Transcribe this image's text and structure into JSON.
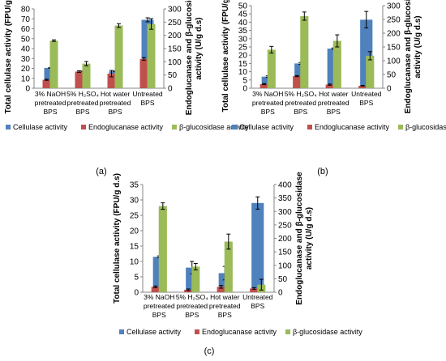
{
  "figure": {
    "panel_labels": [
      "(a)",
      "(b)",
      "(c)"
    ]
  },
  "chart_data": [
    {
      "type": "bar",
      "panel": "(a)",
      "categories": [
        [
          "3% NaOH",
          "pretreated",
          "BPS"
        ],
        [
          "5% H₂SO₄",
          "pretreated",
          "BPS"
        ],
        [
          "Hot water",
          "pretreated",
          "BPS"
        ],
        [
          "Untreated",
          "BPS"
        ]
      ],
      "ylabel": "Total cellulase activity (FPU/g d.s)",
      "y2label": [
        "Endoglucanase and β-glucosidase",
        "activity (U/g d.s)"
      ],
      "ylim": [
        0,
        80
      ],
      "yticks": [
        0,
        10,
        20,
        30,
        40,
        50,
        60,
        70,
        80
      ],
      "y2lim": [
        0,
        300
      ],
      "y2ticks": [
        0,
        50,
        100,
        150,
        200,
        250,
        300
      ],
      "grid": false,
      "legend_position": "bottom",
      "series": [
        {
          "name": "Cellulase activity",
          "axis": "left",
          "color": "#4f81bd",
          "values": [
            20.5,
            17.0,
            17.0,
            69.0
          ],
          "errors": [
            0.4,
            0.3,
            0.4,
            2.0
          ]
        },
        {
          "name": "Endoglucanase activity",
          "axis": "right",
          "color": "#c0504d",
          "values": [
            32,
            63,
            55,
            111
          ],
          "errors": [
            2,
            3,
            12,
            5
          ]
        },
        {
          "name": "β-glucosidase activity",
          "axis": "right",
          "color": "#9bbb59",
          "values": [
            180,
            93,
            237,
            243
          ],
          "errors": [
            3,
            8,
            7,
            20
          ]
        }
      ]
    },
    {
      "type": "bar",
      "panel": "(b)",
      "categories": [
        [
          "3% NaOH",
          "pretreated",
          "BPS"
        ],
        [
          "5% H₂SO₄",
          "pretreated",
          "BPS"
        ],
        [
          "Hot water",
          "pretreated",
          "BPS"
        ],
        [
          "Untreated",
          "BPS"
        ]
      ],
      "ylabel": "Total cellulase activity (FPU/g d.s)",
      "y2label": [
        "Endoglucanase and β-glucosidase",
        "activity (U/g d.s)"
      ],
      "ylim": [
        0,
        50
      ],
      "yticks": [
        0,
        5,
        10,
        15,
        20,
        25,
        30,
        35,
        40,
        45,
        50
      ],
      "y2lim": [
        0,
        300
      ],
      "y2ticks": [
        0,
        50,
        100,
        150,
        200,
        250,
        300
      ],
      "grid": false,
      "legend_position": "bottom",
      "series": [
        {
          "name": "Cellulase activity",
          "axis": "left",
          "color": "#4f81bd",
          "values": [
            7.0,
            15.0,
            24.0,
            41.5
          ],
          "errors": [
            0.5,
            0.6,
            0.4,
            5.0
          ]
        },
        {
          "name": "Endoglucanase activity",
          "axis": "right",
          "color": "#c0504d",
          "values": [
            15,
            44,
            13,
            9
          ],
          "errors": [
            2,
            2,
            2,
            1
          ]
        },
        {
          "name": "β-glucosidase activity",
          "axis": "right",
          "color": "#9bbb59",
          "values": [
            140,
            262,
            172,
            118
          ],
          "errors": [
            12,
            15,
            22,
            15
          ]
        }
      ]
    },
    {
      "type": "bar",
      "panel": "(c)",
      "categories": [
        [
          "3% NaOH",
          "pretreated",
          "BPS"
        ],
        [
          "5% H₂SO₄",
          "pretreated",
          "BPS"
        ],
        [
          "Hot water",
          "pretreated",
          "BPS"
        ],
        [
          "Untreated",
          "BPS"
        ]
      ],
      "ylabel": "Total cellulase activity (FPU/g d.s)",
      "y2label": [
        "Endoglucanase and β-glucosidase",
        "activity (U/g d.s)"
      ],
      "ylim": [
        0,
        35
      ],
      "yticks": [
        0,
        5,
        10,
        15,
        20,
        25,
        30,
        35
      ],
      "y2lim": [
        0,
        400
      ],
      "y2ticks": [
        0,
        50,
        100,
        150,
        200,
        250,
        300,
        350,
        400
      ],
      "grid": false,
      "legend_position": "bottom",
      "series": [
        {
          "name": "Cellulase activity",
          "axis": "left",
          "color": "#4f81bd",
          "values": [
            11.5,
            8.0,
            6.2,
            29.0
          ],
          "errors": [
            0.3,
            2.0,
            2.2,
            2.0
          ]
        },
        {
          "name": "Endoglucanase activity",
          "axis": "right",
          "color": "#c0504d",
          "values": [
            20,
            9,
            20,
            14
          ],
          "errors": [
            3,
            3,
            5,
            3
          ]
        },
        {
          "name": "β-glucosidase activity",
          "axis": "right",
          "color": "#9bbb59",
          "values": [
            320,
            95,
            188,
            28
          ],
          "errors": [
            12,
            12,
            28,
            20
          ]
        }
      ]
    }
  ]
}
